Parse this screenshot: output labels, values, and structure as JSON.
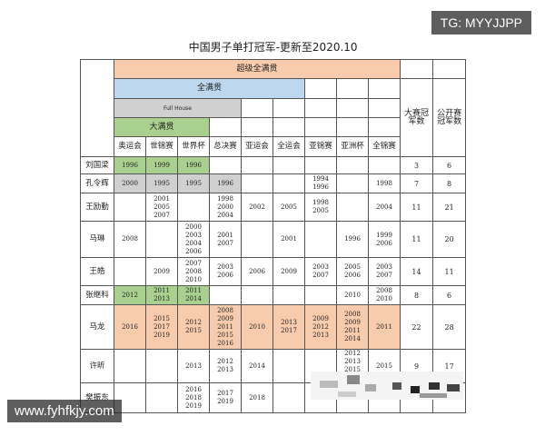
{
  "title": "中国男子单打冠军-更新至2020.10",
  "groups": {
    "super_grand_slam": "超级全满贯",
    "full_grand_slam": "全满贯",
    "full_house": "Full House",
    "grand_slam": "大满贯"
  },
  "count_headers": [
    "大赛冠军数",
    "公开赛冠军数"
  ],
  "events": [
    "奥运会",
    "世锦赛",
    "世界杯",
    "总决赛",
    "亚运会",
    "全运会",
    "亚锦赛",
    "亚洲杯",
    "全锦赛"
  ],
  "colors": {
    "super": "#f8cbad",
    "full": "#bdd7ee",
    "house": "#d0d0d0",
    "grand": "#a9d08e"
  },
  "rows": [
    {
      "name": "刘国梁",
      "cells": [
        "1996",
        "1999",
        "1996",
        "",
        "",
        "",
        "",
        "",
        ""
      ],
      "major": "3",
      "open": "6",
      "hl": "grand",
      "span": 3
    },
    {
      "name": "孔令辉",
      "cells": [
        "2000",
        "1995",
        "1995",
        "1996",
        "",
        "",
        "1994\n1996",
        "",
        "1998"
      ],
      "major": "7",
      "open": "8",
      "hl": "house",
      "span": 4
    },
    {
      "name": "王励勤",
      "cells": [
        "",
        "2001  2005\n2007",
        "",
        "1998  2000\n2004",
        "2002",
        "2005",
        "1998  2005",
        "",
        "2004"
      ],
      "major": "11",
      "open": "21"
    },
    {
      "name": "马琳",
      "cells": [
        "2008",
        "",
        "2000\n2003\n2004\n2006",
        "2001\n2007",
        "",
        "2001",
        "",
        "1996",
        "1999\n2006"
      ],
      "major": "11",
      "open": "20"
    },
    {
      "name": "王皓",
      "cells": [
        "",
        "2009",
        "2007\n2008\n2010",
        "2003\n2006",
        "2006",
        "2009",
        "2003\n2007",
        "2005\n2006",
        "2003\n2007"
      ],
      "major": "14",
      "open": "11"
    },
    {
      "name": "张继科",
      "cells": [
        "2012",
        "2011\n2013",
        "2011\n2014",
        "",
        "",
        "",
        "",
        "2010",
        "2008\n2010"
      ],
      "major": "8",
      "open": "6",
      "hl": "grand",
      "span": 3
    },
    {
      "name": "马龙",
      "cells": [
        "2016",
        "2015\n2017\n2019",
        "2012\n2015",
        "2008\n2009\n2011\n2015\n2016",
        "2010",
        "2013\n2017",
        "2009\n2012\n2013",
        "2008\n2009\n2011  2014",
        "2011"
      ],
      "major": "22",
      "open": "28",
      "hl": "super",
      "span": 9
    },
    {
      "name": "许昕",
      "cells": [
        "",
        "",
        "2013",
        "2012\n2013",
        "2014",
        "",
        "",
        "2012\n2013\n2015\n2016",
        "2015"
      ],
      "major": "9",
      "open": "17"
    },
    {
      "name": "樊振东",
      "cells": [
        "",
        "",
        "2016\n2018\n2019",
        "2017\n2019",
        "2018",
        "",
        "",
        "",
        ""
      ],
      "major": "",
      "open": ""
    }
  ],
  "watermarks": {
    "top": "TG: MYYJJPP",
    "bottom": "www.fyhfkjy.com"
  }
}
